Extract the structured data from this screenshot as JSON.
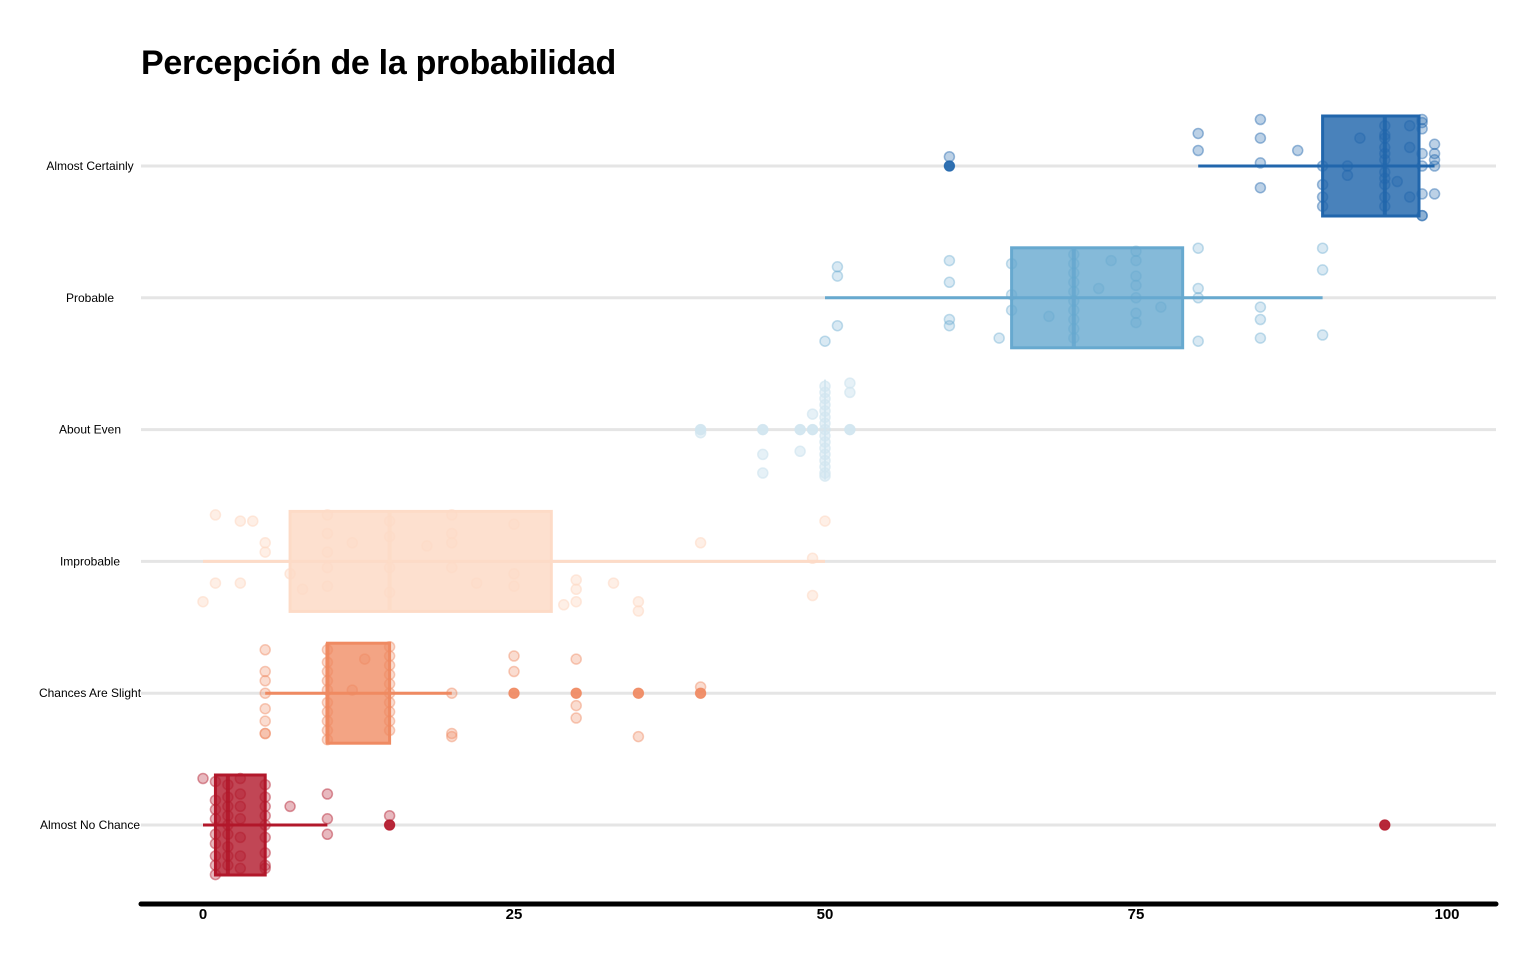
{
  "chart_data": {
    "type": "box",
    "title": "Percepción de la probabilidad",
    "xlabel": "",
    "ylabel": "",
    "xlim": [
      -5,
      100
    ],
    "x_ticks": [
      0,
      25,
      50,
      75,
      100
    ],
    "grid": "horizontal",
    "categories": [
      {
        "name": "Almost Certainly",
        "color": "#2166ac",
        "box_opacity": 0.82,
        "point_opacity": 0.3,
        "box": {
          "whisker_low": 80,
          "q1": 90,
          "median": 95,
          "q3": 97.75,
          "whisker_high": 99
        },
        "outliers": [
          60
        ],
        "points": [
          [
            80,
            1.05
          ],
          [
            80,
            0.5
          ],
          [
            85,
            1.5
          ],
          [
            85,
            0.9
          ],
          [
            85,
            0.1
          ],
          [
            85,
            -0.7
          ],
          [
            60,
            0.3
          ],
          [
            60,
            0
          ],
          [
            90,
            0
          ],
          [
            88,
            0.5
          ],
          [
            92,
            0
          ],
          [
            95,
            1.3
          ],
          [
            95,
            1.0
          ],
          [
            95,
            0.6
          ],
          [
            95,
            0.2
          ],
          [
            95,
            -0.2
          ],
          [
            95,
            -0.6
          ],
          [
            95,
            -1.0
          ],
          [
            95,
            -1.3
          ],
          [
            95,
            0.9
          ],
          [
            95,
            -0.4
          ],
          [
            95,
            0.4
          ],
          [
            97,
            1.3
          ],
          [
            97,
            -1.0
          ],
          [
            98,
            1.5
          ],
          [
            98,
            1.4
          ],
          [
            98,
            1.2
          ],
          [
            98,
            0.4
          ],
          [
            98,
            0
          ],
          [
            98,
            -0.9
          ],
          [
            98,
            -1.6
          ],
          [
            98,
            -1.6
          ],
          [
            99,
            0.7
          ],
          [
            99,
            0.4
          ],
          [
            99,
            0.2
          ],
          [
            99,
            0
          ],
          [
            99,
            -0.9
          ],
          [
            90,
            -1.0
          ],
          [
            90,
            -1.3
          ],
          [
            90,
            -0.6
          ],
          [
            93,
            0.9
          ],
          [
            96,
            -0.5
          ],
          [
            97,
            0.6
          ],
          [
            92,
            -0.3
          ]
        ]
      },
      {
        "name": "Probable",
        "color": "#67a9cf",
        "box_opacity": 0.8,
        "point_opacity": 0.25,
        "box": {
          "whisker_low": 50,
          "q1": 65,
          "median": 70,
          "q3": 78.75,
          "whisker_high": 90
        },
        "outliers": [],
        "points": [
          [
            50,
            -1.4
          ],
          [
            51,
            1.0
          ],
          [
            51,
            0.7
          ],
          [
            51,
            -0.9
          ],
          [
            60,
            1.2
          ],
          [
            60,
            0.5
          ],
          [
            60,
            -0.9
          ],
          [
            60,
            -0.7
          ],
          [
            64,
            -1.3
          ],
          [
            65,
            0.1
          ],
          [
            65,
            -0.4
          ],
          [
            65,
            1.1
          ],
          [
            70,
            1.4
          ],
          [
            70,
            1.1
          ],
          [
            70,
            0.8
          ],
          [
            70,
            0.5
          ],
          [
            70,
            0.2
          ],
          [
            70,
            -0.1
          ],
          [
            70,
            -0.4
          ],
          [
            70,
            -0.7
          ],
          [
            70,
            -1.0
          ],
          [
            70,
            -1.3
          ],
          [
            75,
            1.5
          ],
          [
            75,
            1.2
          ],
          [
            75,
            0.7
          ],
          [
            75,
            0.4
          ],
          [
            75,
            0
          ],
          [
            75,
            -0.5
          ],
          [
            75,
            -0.8
          ],
          [
            80,
            1.6
          ],
          [
            80,
            0.3
          ],
          [
            80,
            0
          ],
          [
            80,
            -1.4
          ],
          [
            85,
            -0.3
          ],
          [
            85,
            -0.7
          ],
          [
            85,
            -1.3
          ],
          [
            90,
            1.6
          ],
          [
            90,
            0.9
          ],
          [
            90,
            -1.2
          ],
          [
            72,
            0.3
          ],
          [
            68,
            -0.6
          ],
          [
            73,
            1.2
          ],
          [
            77,
            -0.3
          ]
        ]
      },
      {
        "name": "About Even",
        "color": "#d1e5f0",
        "box_opacity": 0.85,
        "point_opacity": 0.55,
        "box": {
          "whisker_low": 50,
          "q1": 50,
          "median": 50,
          "q3": 50,
          "whisker_high": 50
        },
        "outliers": [
          40,
          45,
          48,
          49,
          52
        ],
        "points": [
          [
            40,
            0
          ],
          [
            40,
            -0.1
          ],
          [
            45,
            0
          ],
          [
            45,
            -0.8
          ],
          [
            45,
            -1.4
          ],
          [
            48,
            0
          ],
          [
            48,
            -0.7
          ],
          [
            49,
            0
          ],
          [
            49,
            0.5
          ],
          [
            50,
            1.4
          ],
          [
            50,
            1.2
          ],
          [
            50,
            1.0
          ],
          [
            50,
            0.8
          ],
          [
            50,
            0.6
          ],
          [
            50,
            0.4
          ],
          [
            50,
            0.2
          ],
          [
            50,
            0
          ],
          [
            50,
            -0.2
          ],
          [
            50,
            -0.4
          ],
          [
            50,
            -0.6
          ],
          [
            50,
            -0.8
          ],
          [
            50,
            -1.0
          ],
          [
            50,
            -1.2
          ],
          [
            50,
            -1.4
          ],
          [
            50,
            -1.5
          ],
          [
            52,
            0
          ],
          [
            52,
            1.5
          ],
          [
            52,
            1.2
          ]
        ]
      },
      {
        "name": "Improbable",
        "color": "#fddbc7",
        "box_opacity": 0.85,
        "point_opacity": 0.45,
        "box": {
          "whisker_low": 0,
          "q1": 7,
          "median": 15,
          "q3": 28,
          "whisker_high": 50
        },
        "outliers": [],
        "points": [
          [
            0,
            -1.3
          ],
          [
            1,
            1.5
          ],
          [
            1,
            -0.7
          ],
          [
            3,
            1.3
          ],
          [
            3,
            -0.7
          ],
          [
            4,
            1.3
          ],
          [
            5,
            0.6
          ],
          [
            5,
            0.3
          ],
          [
            7,
            -0.4
          ],
          [
            8,
            -0.9
          ],
          [
            10,
            1.5
          ],
          [
            10,
            0.9
          ],
          [
            10,
            0.3
          ],
          [
            10,
            -0.2
          ],
          [
            10,
            -0.8
          ],
          [
            12,
            0.6
          ],
          [
            15,
            1.3
          ],
          [
            15,
            0.8
          ],
          [
            15,
            -0.2
          ],
          [
            15,
            -1.0
          ],
          [
            18,
            0.5
          ],
          [
            20,
            1.5
          ],
          [
            20,
            0.9
          ],
          [
            20,
            0.6
          ],
          [
            20,
            -0.2
          ],
          [
            22,
            -0.7
          ],
          [
            25,
            1.2
          ],
          [
            25,
            -0.4
          ],
          [
            25,
            -0.8
          ],
          [
            30,
            -0.9
          ],
          [
            30,
            -0.6
          ],
          [
            33,
            -0.7
          ],
          [
            35,
            -1.3
          ],
          [
            35,
            -1.6
          ],
          [
            40,
            0.6
          ],
          [
            49,
            0.1
          ],
          [
            49,
            -1.1
          ],
          [
            50,
            1.3
          ],
          [
            29,
            -1.4
          ],
          [
            30,
            -1.3
          ]
        ]
      },
      {
        "name": "Chances Are Slight",
        "color": "#ef8a62",
        "box_opacity": 0.78,
        "point_opacity": 0.3,
        "box": {
          "whisker_low": 5,
          "q1": 10,
          "median": 10,
          "q3": 15,
          "whisker_high": 20
        },
        "outliers": [
          25,
          30,
          35,
          40
        ],
        "points": [
          [
            5,
            1.4
          ],
          [
            5,
            0.7
          ],
          [
            5,
            0.4
          ],
          [
            5,
            0
          ],
          [
            5,
            -0.5
          ],
          [
            5,
            -0.9
          ],
          [
            5,
            -1.3
          ],
          [
            5,
            -1.3
          ],
          [
            10,
            1.4
          ],
          [
            10,
            1.0
          ],
          [
            10,
            0.7
          ],
          [
            10,
            0.4
          ],
          [
            10,
            0.1
          ],
          [
            10,
            -0.3
          ],
          [
            10,
            -0.6
          ],
          [
            10,
            -0.9
          ],
          [
            10,
            -1.2
          ],
          [
            10,
            -1.5
          ],
          [
            13,
            1.1
          ],
          [
            12,
            0.1
          ],
          [
            15,
            1.5
          ],
          [
            15,
            1.2
          ],
          [
            15,
            0.9
          ],
          [
            15,
            0.6
          ],
          [
            15,
            0.3
          ],
          [
            15,
            0
          ],
          [
            15,
            -0.3
          ],
          [
            15,
            -0.6
          ],
          [
            15,
            -0.9
          ],
          [
            15,
            -1.2
          ],
          [
            20,
            -1.4
          ],
          [
            20,
            -1.3
          ],
          [
            20,
            0
          ],
          [
            25,
            1.2
          ],
          [
            25,
            0.7
          ],
          [
            25,
            0
          ],
          [
            30,
            1.1
          ],
          [
            30,
            0
          ],
          [
            30,
            -0.4
          ],
          [
            30,
            -0.8
          ],
          [
            35,
            0
          ],
          [
            35,
            -1.4
          ],
          [
            40,
            0
          ],
          [
            40,
            0.2
          ]
        ]
      },
      {
        "name": "Almost No Chance",
        "color": "#b2182b",
        "box_opacity": 0.8,
        "point_opacity": 0.3,
        "box": {
          "whisker_low": 0,
          "q1": 1,
          "median": 2,
          "q3": 5,
          "whisker_high": 10
        },
        "outliers": [
          15,
          95
        ],
        "points": [
          [
            0,
            1.5
          ],
          [
            1,
            1.4
          ],
          [
            1,
            0.8
          ],
          [
            1,
            0.5
          ],
          [
            1,
            0.2
          ],
          [
            1,
            -0.3
          ],
          [
            1,
            -0.6
          ],
          [
            1,
            -1.0
          ],
          [
            1,
            -1.3
          ],
          [
            1,
            -1.6
          ],
          [
            2,
            1.3
          ],
          [
            2,
            0.9
          ],
          [
            2,
            0.6
          ],
          [
            2,
            0.3
          ],
          [
            2,
            0
          ],
          [
            2,
            -0.3
          ],
          [
            2,
            -0.7
          ],
          [
            2,
            -1.0
          ],
          [
            2,
            -1.3
          ],
          [
            3,
            1.5
          ],
          [
            3,
            1.0
          ],
          [
            3,
            0.6
          ],
          [
            3,
            0.2
          ],
          [
            3,
            -0.4
          ],
          [
            3,
            -1.0
          ],
          [
            3,
            -1.4
          ],
          [
            5,
            1.3
          ],
          [
            5,
            0.9
          ],
          [
            5,
            0.6
          ],
          [
            5,
            0.3
          ],
          [
            5,
            0
          ],
          [
            5,
            -0.4
          ],
          [
            5,
            -0.9
          ],
          [
            5,
            -1.3
          ],
          [
            5,
            -1.4
          ],
          [
            7,
            0.6
          ],
          [
            10,
            1.0
          ],
          [
            10,
            0.2
          ],
          [
            10,
            -0.3
          ],
          [
            15,
            0.3
          ],
          [
            15,
            0
          ],
          [
            95,
            0
          ]
        ]
      }
    ]
  }
}
